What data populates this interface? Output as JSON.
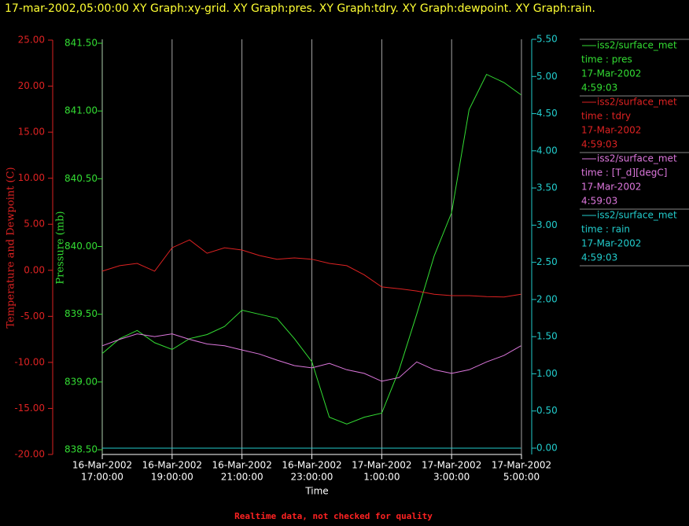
{
  "chart_data": {
    "type": "line",
    "title": "17-mar-2002,05:00:00  XY Graph:xy-grid.  XY Graph:pres.  XY Graph:tdry.  XY Graph:dewpoint.  XY Graph:rain.",
    "xlabel": "Time",
    "ylabel": "Temperature and Dewpoint (C)",
    "y3label": "Pressure (mb)",
    "annotation": "Realtime data, not checked for quality",
    "grid": true,
    "x": [
      "2002-03-16T17:00:00",
      "2002-03-16T17:30:00",
      "2002-03-16T18:00:00",
      "2002-03-16T18:30:00",
      "2002-03-16T19:00:00",
      "2002-03-16T19:30:00",
      "2002-03-16T20:00:00",
      "2002-03-16T20:30:00",
      "2002-03-16T21:00:00",
      "2002-03-16T21:30:00",
      "2002-03-16T22:00:00",
      "2002-03-16T22:30:00",
      "2002-03-16T23:00:00",
      "2002-03-16T23:30:00",
      "2002-03-17T00:00:00",
      "2002-03-17T00:30:00",
      "2002-03-17T01:00:00",
      "2002-03-17T01:30:00",
      "2002-03-17T02:00:00",
      "2002-03-17T02:30:00",
      "2002-03-17T03:00:00",
      "2002-03-17T03:30:00",
      "2002-03-17T04:00:00",
      "2002-03-17T04:30:00",
      "2002-03-17T04:59:03"
    ],
    "xlim": [
      "2002-03-16T17:00:00",
      "2002-03-17T05:00:00"
    ],
    "xticks": [
      {
        "value": "2002-03-16T17:00:00",
        "label": [
          "16-Mar-2002",
          "17:00:00"
        ]
      },
      {
        "value": "2002-03-16T19:00:00",
        "label": [
          "16-Mar-2002",
          "19:00:00"
        ]
      },
      {
        "value": "2002-03-16T21:00:00",
        "label": [
          "16-Mar-2002",
          "21:00:00"
        ]
      },
      {
        "value": "2002-03-16T23:00:00",
        "label": [
          "16-Mar-2002",
          "23:00:00"
        ]
      },
      {
        "value": "2002-03-17T01:00:00",
        "label": [
          "17-Mar-2002",
          "1:00:00"
        ]
      },
      {
        "value": "2002-03-17T03:00:00",
        "label": [
          "17-Mar-2002",
          "3:00:00"
        ]
      },
      {
        "value": "2002-03-17T05:00:00",
        "label": [
          "17-Mar-2002",
          "5:00:00"
        ]
      }
    ],
    "ylim": [
      -20,
      25
    ],
    "yticks": [
      {
        "value": -20,
        "label": "-20.00"
      },
      {
        "value": -15,
        "label": "-15.00"
      },
      {
        "value": -10,
        "label": "-10.00"
      },
      {
        "value": -5,
        "label": "-5.00"
      },
      {
        "value": 0,
        "label": "0.00"
      },
      {
        "value": 5,
        "label": "5.00"
      },
      {
        "value": 10,
        "label": "10.00"
      },
      {
        "value": 15,
        "label": "15.00"
      },
      {
        "value": 20,
        "label": "20.00"
      },
      {
        "value": 25,
        "label": "25.00"
      }
    ],
    "y3lim": [
      838.5,
      841.5
    ],
    "y3ticks": [
      {
        "value": 838.5,
        "label": "838.50"
      },
      {
        "value": 839,
        "label": "839.00"
      },
      {
        "value": 839.5,
        "label": "839.50"
      },
      {
        "value": 840,
        "label": "840.00"
      },
      {
        "value": 840.5,
        "label": "840.50"
      },
      {
        "value": 841,
        "label": "841.00"
      },
      {
        "value": 841.5,
        "label": "841.50"
      }
    ],
    "y2lim": [
      0,
      5.5
    ],
    "y2ticks": [
      {
        "value": 0,
        "label": "0.00"
      },
      {
        "value": 0.5,
        "label": "0.50"
      },
      {
        "value": 1,
        "label": "1.00"
      },
      {
        "value": 1.5,
        "label": "1.50"
      },
      {
        "value": 2,
        "label": "2.00"
      },
      {
        "value": 2.5,
        "label": "2.50"
      },
      {
        "value": 3,
        "label": "3.00"
      },
      {
        "value": 3.5,
        "label": "3.50"
      },
      {
        "value": 4,
        "label": "4.00"
      },
      {
        "value": 4.5,
        "label": "4.50"
      },
      {
        "value": 5,
        "label": "5.00"
      },
      {
        "value": 5.5,
        "label": "5.50"
      }
    ],
    "series": [
      {
        "name": "iss2/surface_met",
        "legend_lines": [
          "time : pres",
          "17-Mar-2002",
          "4:59:03"
        ],
        "color": "#33dd33",
        "axis": "y3",
        "values": [
          839.21,
          839.32,
          839.38,
          839.29,
          839.24,
          839.32,
          839.35,
          839.41,
          839.53,
          839.5,
          839.47,
          839.32,
          839.15,
          838.74,
          838.69,
          838.74,
          838.77,
          839.09,
          839.5,
          839.93,
          840.25,
          841.01,
          841.27,
          841.21,
          841.12
        ]
      },
      {
        "name": "iss2/surface_met",
        "legend_lines": [
          "time : tdry",
          "17-Mar-2002",
          "4:59:03"
        ],
        "color": "#dd2222",
        "axis": "y",
        "values": [
          -0.1,
          0.5,
          0.75,
          -0.1,
          2.45,
          3.3,
          1.85,
          2.45,
          2.2,
          1.6,
          1.2,
          1.35,
          1.2,
          0.75,
          0.5,
          -0.5,
          -1.8,
          -2.0,
          -2.25,
          -2.6,
          -2.75,
          -2.75,
          -2.85,
          -2.9,
          -2.6
        ]
      },
      {
        "name": "iss2/surface_met",
        "legend_lines": [
          "time : [T_d][degC]",
          "17-Mar-2002",
          "4:59:03"
        ],
        "color": "#dd77dd",
        "axis": "y",
        "values": [
          -8.2,
          -7.5,
          -6.9,
          -7.2,
          -6.9,
          -7.5,
          -8.0,
          -8.2,
          -8.65,
          -9.1,
          -9.75,
          -10.35,
          -10.6,
          -10.1,
          -10.8,
          -11.2,
          -12.05,
          -11.65,
          -9.95,
          -10.8,
          -11.2,
          -10.8,
          -9.95,
          -9.25,
          -8.2
        ]
      },
      {
        "name": "iss2/surface_met",
        "legend_lines": [
          "time : rain",
          "17-Mar-2002",
          "4:59:03"
        ],
        "color": "#22cccc",
        "axis": "y2",
        "values": [
          0,
          0,
          0,
          0,
          0,
          0,
          0,
          0,
          0,
          0,
          0,
          0,
          0,
          0,
          0,
          0,
          0,
          0,
          0,
          0,
          0,
          0,
          0,
          0,
          0
        ]
      }
    ]
  }
}
